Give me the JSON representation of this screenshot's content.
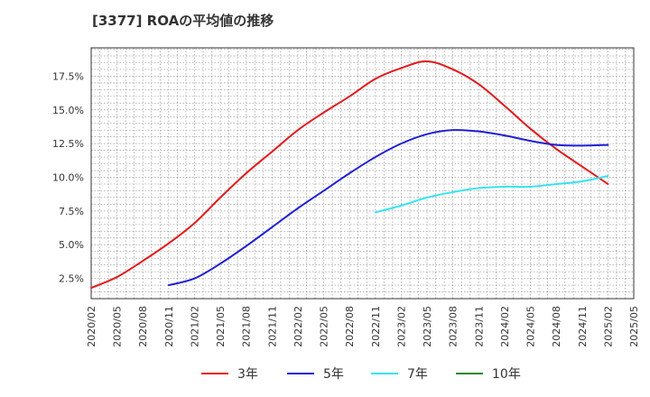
{
  "title": "[3377]  ROAの平均値の推移",
  "chart_data": {
    "type": "line",
    "title": "[3377]  ROAの平均値の推移",
    "xlabel": "",
    "ylabel": "",
    "ylim": [
      1.0,
      19.6
    ],
    "yticks": [
      2.5,
      5.0,
      7.5,
      10.0,
      12.5,
      15.0,
      17.5
    ],
    "ytick_labels": [
      "2.5%",
      "5.0%",
      "7.5%",
      "10.0%",
      "12.5%",
      "15.0%",
      "17.5%"
    ],
    "xticks": [
      "2020/02",
      "2020/05",
      "2020/08",
      "2020/11",
      "2021/02",
      "2021/05",
      "2021/08",
      "2021/11",
      "2022/02",
      "2022/05",
      "2022/08",
      "2022/11",
      "2023/02",
      "2023/05",
      "2023/08",
      "2023/11",
      "2024/02",
      "2024/05",
      "2024/08",
      "2024/11",
      "2025/02",
      "2025/05"
    ],
    "grid": true,
    "legend_position": "bottom",
    "series": [
      {
        "name": "3年",
        "color": "#e31a1c",
        "points": [
          [
            "2020/02",
            1.8
          ],
          [
            "2020/05",
            2.6
          ],
          [
            "2020/08",
            3.8
          ],
          [
            "2020/11",
            5.1
          ],
          [
            "2021/02",
            6.6
          ],
          [
            "2021/05",
            8.5
          ],
          [
            "2021/08",
            10.3
          ],
          [
            "2021/11",
            11.9
          ],
          [
            "2022/02",
            13.5
          ],
          [
            "2022/05",
            14.8
          ],
          [
            "2022/08",
            16.0
          ],
          [
            "2022/11",
            17.3
          ],
          [
            "2023/02",
            18.1
          ],
          [
            "2023/05",
            18.6
          ],
          [
            "2023/08",
            18.0
          ],
          [
            "2023/11",
            16.9
          ],
          [
            "2024/02",
            15.3
          ],
          [
            "2024/05",
            13.6
          ],
          [
            "2024/08",
            12.1
          ],
          [
            "2024/11",
            10.8
          ],
          [
            "2025/02",
            9.5
          ]
        ]
      },
      {
        "name": "5年",
        "color": "#1f1fd6",
        "points": [
          [
            "2020/11",
            2.0
          ],
          [
            "2021/02",
            2.5
          ],
          [
            "2021/05",
            3.6
          ],
          [
            "2021/08",
            4.9
          ],
          [
            "2021/11",
            6.3
          ],
          [
            "2022/02",
            7.7
          ],
          [
            "2022/05",
            9.0
          ],
          [
            "2022/08",
            10.3
          ],
          [
            "2022/11",
            11.5
          ],
          [
            "2023/02",
            12.5
          ],
          [
            "2023/05",
            13.2
          ],
          [
            "2023/08",
            13.5
          ],
          [
            "2023/11",
            13.4
          ],
          [
            "2024/02",
            13.1
          ],
          [
            "2024/05",
            12.7
          ],
          [
            "2024/08",
            12.4
          ],
          [
            "2024/11",
            12.35
          ],
          [
            "2025/02",
            12.4
          ]
        ]
      },
      {
        "name": "7年",
        "color": "#33e5f0",
        "points": [
          [
            "2022/11",
            7.4
          ],
          [
            "2023/02",
            7.9
          ],
          [
            "2023/05",
            8.5
          ],
          [
            "2023/08",
            8.9
          ],
          [
            "2023/11",
            9.2
          ],
          [
            "2024/02",
            9.3
          ],
          [
            "2024/05",
            9.3
          ],
          [
            "2024/08",
            9.5
          ],
          [
            "2024/11",
            9.7
          ],
          [
            "2025/02",
            10.1
          ]
        ]
      },
      {
        "name": "10年",
        "color": "#2a8a2a",
        "points": []
      }
    ]
  }
}
